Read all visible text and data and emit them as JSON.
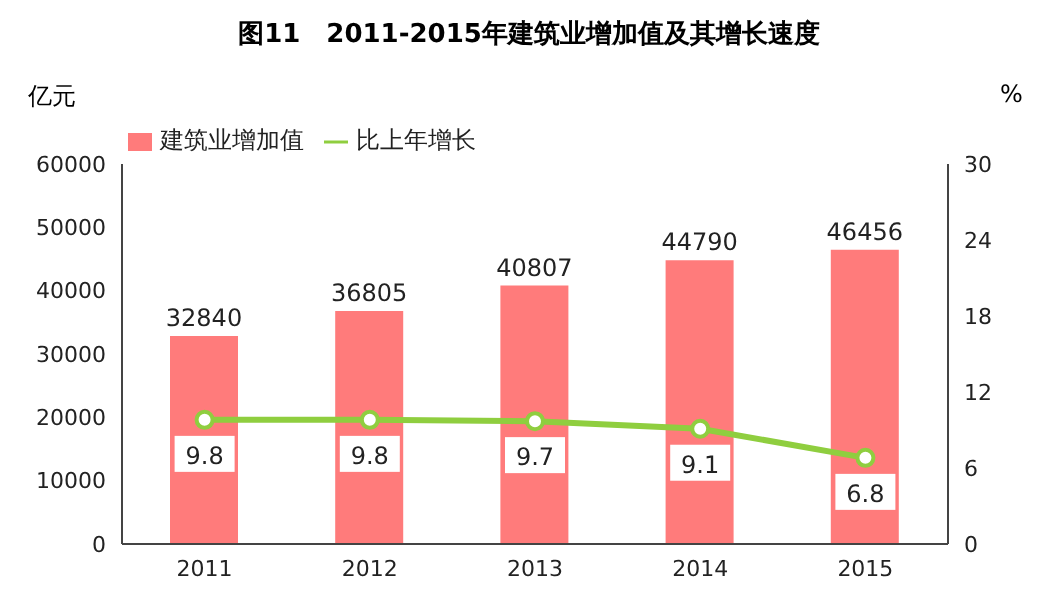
{
  "chart_data": {
    "type": "bar",
    "title": "图11　2011-2015年建筑业增加值及其增长速度",
    "ylabel": "亿元",
    "y2label": "%",
    "categories": [
      "2011",
      "2012",
      "2013",
      "2014",
      "2015"
    ],
    "series": [
      {
        "name": "建筑业增加值",
        "color": "#ff7b7b",
        "values": [
          32840,
          36805,
          40807,
          44790,
          46456
        ]
      },
      {
        "name": "比上年增长",
        "type": "line",
        "axis": "y2",
        "color": "#8fce3f",
        "values": [
          9.8,
          9.8,
          9.7,
          9.1,
          6.8
        ]
      }
    ],
    "ylim": [
      0,
      60000
    ],
    "yticks": [
      0,
      10000,
      20000,
      30000,
      40000,
      50000,
      60000
    ],
    "y2lim": [
      0,
      30
    ],
    "y2ticks": [
      0,
      6,
      12,
      18,
      24,
      30
    ],
    "grid": false,
    "legend": "top left",
    "marker": "circle",
    "data_labels": true
  }
}
